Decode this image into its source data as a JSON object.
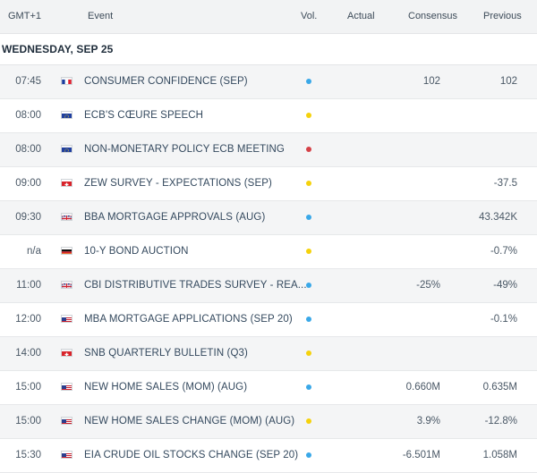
{
  "columns": {
    "time": "GMT+1",
    "event": "Event",
    "vol": "Vol.",
    "actual": "Actual",
    "consensus": "Consensus",
    "previous": "Previous"
  },
  "day_label": "WEDNESDAY, SEP 25",
  "colors": {
    "low": "#f5d20c",
    "medium": "#3aa8e8",
    "high": "#d54147"
  },
  "rows": [
    {
      "time": "07:45",
      "flag": "france-flag-icon",
      "event": "CONSUMER CONFIDENCE (SEP)",
      "vol": "medium",
      "actual": "",
      "consensus": "102",
      "previous": "102"
    },
    {
      "time": "08:00",
      "flag": "eu-flag-icon",
      "event": "ECB'S CŒURE SPEECH",
      "vol": "low",
      "actual": "",
      "consensus": "",
      "previous": ""
    },
    {
      "time": "08:00",
      "flag": "eu-flag-icon",
      "event": "NON-MONETARY POLICY ECB MEETING",
      "vol": "high",
      "actual": "",
      "consensus": "",
      "previous": ""
    },
    {
      "time": "09:00",
      "flag": "switzerland-flag-icon",
      "event": "ZEW SURVEY - EXPECTATIONS (SEP)",
      "vol": "low",
      "actual": "",
      "consensus": "",
      "previous": "-37.5"
    },
    {
      "time": "09:30",
      "flag": "uk-flag-icon",
      "event": "BBA MORTGAGE APPROVALS (AUG)",
      "vol": "medium",
      "actual": "",
      "consensus": "",
      "previous": "43.342K"
    },
    {
      "time": "n/a",
      "flag": "germany-flag-icon",
      "event": "10-Y BOND AUCTION",
      "vol": "low",
      "actual": "",
      "consensus": "",
      "previous": "-0.7%"
    },
    {
      "time": "11:00",
      "flag": "uk-flag-icon",
      "event": "CBI DISTRIBUTIVE TRADES SURVEY - REA...",
      "vol": "medium",
      "actual": "",
      "consensus": "-25%",
      "previous": "-49%"
    },
    {
      "time": "12:00",
      "flag": "us-flag-icon",
      "event": "MBA MORTGAGE APPLICATIONS (SEP 20)",
      "vol": "medium",
      "actual": "",
      "consensus": "",
      "previous": "-0.1%"
    },
    {
      "time": "14:00",
      "flag": "switzerland-flag-icon",
      "event": "SNB QUARTERLY BULLETIN (Q3)",
      "vol": "low",
      "actual": "",
      "consensus": "",
      "previous": ""
    },
    {
      "time": "15:00",
      "flag": "us-flag-icon",
      "event": "NEW HOME SALES (MOM) (AUG)",
      "vol": "medium",
      "actual": "",
      "consensus": "0.660M",
      "previous": "0.635M"
    },
    {
      "time": "15:00",
      "flag": "us-flag-icon",
      "event": "NEW HOME SALES CHANGE (MOM) (AUG)",
      "vol": "low",
      "actual": "",
      "consensus": "3.9%",
      "previous": "-12.8%"
    },
    {
      "time": "15:30",
      "flag": "us-flag-icon",
      "event": "EIA CRUDE OIL STOCKS CHANGE (SEP 20)",
      "vol": "medium",
      "actual": "",
      "consensus": "-6.501M",
      "previous": "1.058M"
    }
  ]
}
